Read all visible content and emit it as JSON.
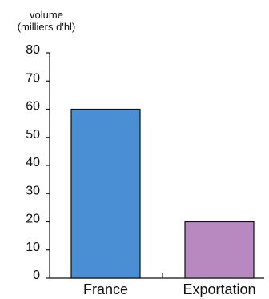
{
  "chart_data": {
    "type": "bar",
    "ylabel": [
      "volume",
      "(milliers d'hl)"
    ],
    "categories": [
      "France",
      "Exportation"
    ],
    "values": [
      60,
      20
    ],
    "colors": [
      "#4a8ed4",
      "#b888c0"
    ],
    "ylim": [
      0,
      80
    ],
    "yticks": [
      0,
      10,
      20,
      30,
      40,
      50,
      60,
      70,
      80
    ],
    "grid": false
  }
}
